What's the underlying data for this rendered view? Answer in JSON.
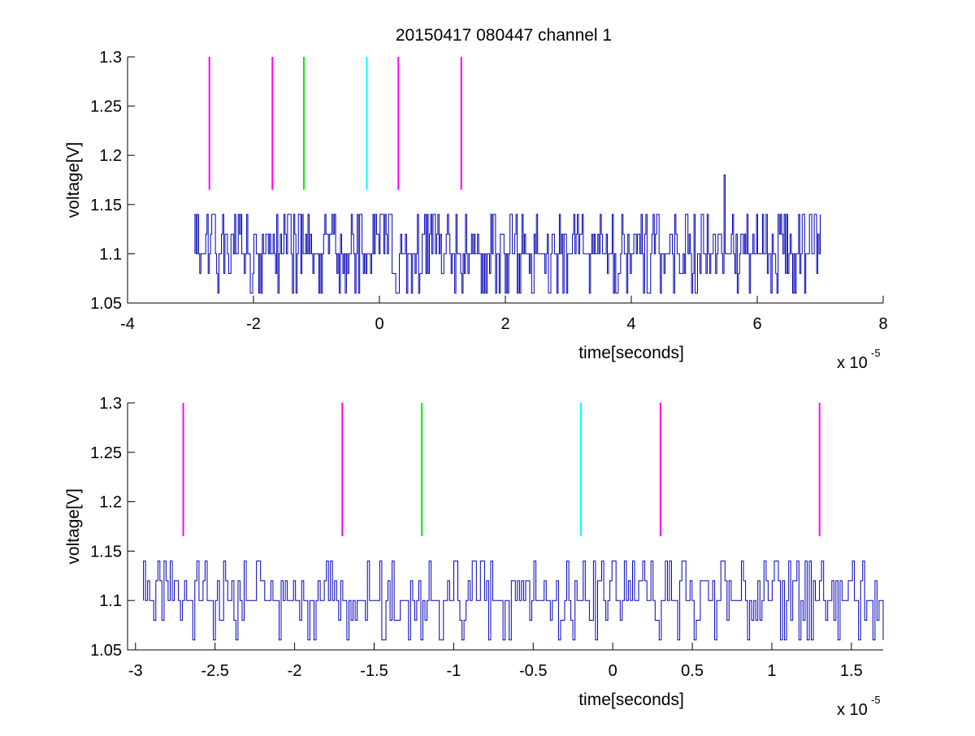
{
  "title": "20150417 080447 channel 1",
  "colors": {
    "signal": "#0000bb",
    "magenta": "#ff00ff",
    "green": "#00ee00",
    "cyan": "#00ffff",
    "axis": "#000000"
  },
  "chart_data": [
    {
      "type": "line",
      "title": "20150417 080447 channel 1",
      "xlabel": "time[seconds]",
      "ylabel": "voltage[V]",
      "x_multiplier": {
        "base": "x 10",
        "exponent": "-5"
      },
      "xlim": [
        -4,
        8
      ],
      "ylim": [
        1.05,
        1.3
      ],
      "x_ticks": [
        -4,
        -2,
        0,
        2,
        4,
        6,
        8
      ],
      "x_tick_labels": [
        "-4",
        "-2",
        "0",
        "2",
        "4",
        "6",
        "8"
      ],
      "y_ticks": [
        1.05,
        1.1,
        1.15,
        1.2,
        1.25,
        1.3
      ],
      "y_tick_labels": [
        "1.05",
        "1.1",
        "1.15",
        "1.2",
        "1.25",
        "1.3"
      ],
      "grid": false,
      "signal": {
        "x_range": [
          -2.93,
          7.0
        ],
        "levels": [
          1.06,
          1.08,
          1.1,
          1.12,
          1.14
        ],
        "baseline": 1.1,
        "spike": {
          "x": 5.47,
          "y": 1.18
        }
      },
      "markers": [
        {
          "x": -2.7,
          "color": "magenta",
          "y_range": [
            1.165,
            1.3
          ]
        },
        {
          "x": -1.7,
          "color": "magenta",
          "y_range": [
            1.165,
            1.3
          ]
        },
        {
          "x": -1.2,
          "color": "green",
          "y_range": [
            1.165,
            1.3
          ]
        },
        {
          "x": -0.2,
          "color": "cyan",
          "y_range": [
            1.165,
            1.3
          ]
        },
        {
          "x": 0.3,
          "color": "magenta",
          "y_range": [
            1.165,
            1.3
          ]
        },
        {
          "x": 1.3,
          "color": "magenta",
          "y_range": [
            1.165,
            1.3
          ]
        }
      ]
    },
    {
      "type": "line",
      "xlabel": "time[seconds]",
      "ylabel": "voltage[V]",
      "x_multiplier": {
        "base": "x 10",
        "exponent": "-5"
      },
      "xlim": [
        -3.05,
        1.7
      ],
      "ylim": [
        1.05,
        1.3
      ],
      "x_ticks": [
        -3,
        -2.5,
        -2,
        -1.5,
        -1,
        -0.5,
        0,
        0.5,
        1,
        1.5
      ],
      "x_tick_labels": [
        "-3",
        "-2.5",
        "-2",
        "-1.5",
        "-1",
        "-0.5",
        "0",
        "0.5",
        "1",
        "1.5"
      ],
      "y_ticks": [
        1.05,
        1.1,
        1.15,
        1.2,
        1.25,
        1.3
      ],
      "y_tick_labels": [
        "1.05",
        "1.1",
        "1.15",
        "1.2",
        "1.25",
        "1.3"
      ],
      "grid": false,
      "signal": {
        "x_range": [
          -2.95,
          1.7
        ],
        "levels": [
          1.06,
          1.08,
          1.1,
          1.12,
          1.14
        ],
        "baseline": 1.1
      },
      "markers": [
        {
          "x": -2.7,
          "color": "magenta",
          "y_range": [
            1.165,
            1.3
          ]
        },
        {
          "x": -1.7,
          "color": "magenta",
          "y_range": [
            1.165,
            1.3
          ]
        },
        {
          "x": -1.2,
          "color": "green",
          "y_range": [
            1.165,
            1.3
          ]
        },
        {
          "x": -0.2,
          "color": "cyan",
          "y_range": [
            1.165,
            1.3
          ]
        },
        {
          "x": 0.3,
          "color": "magenta",
          "y_range": [
            1.165,
            1.3
          ]
        },
        {
          "x": 1.3,
          "color": "magenta",
          "y_range": [
            1.165,
            1.3
          ]
        }
      ]
    }
  ]
}
